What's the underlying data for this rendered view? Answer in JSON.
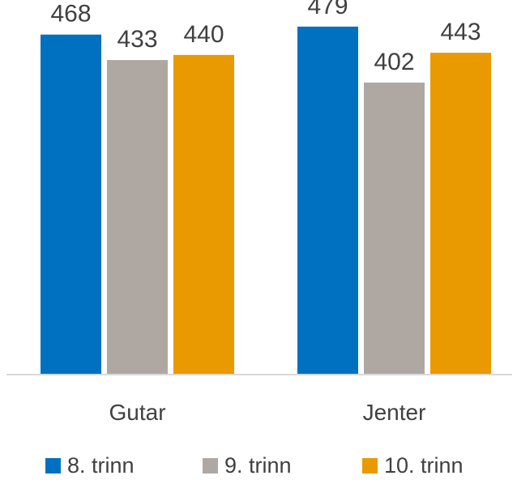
{
  "chart_data": {
    "type": "bar",
    "categories": [
      "Gutar",
      "Jenter"
    ],
    "series": [
      {
        "name": "8. trinn",
        "values": [
          468,
          479
        ],
        "color": "#0070C0"
      },
      {
        "name": "9. trinn",
        "values": [
          433,
          402
        ],
        "color": "#AFA8A2"
      },
      {
        "name": "10. trinn",
        "values": [
          440,
          443
        ],
        "color": "#E89A00"
      }
    ],
    "title": "",
    "xlabel": "",
    "ylabel": "",
    "ylim": [
      0,
      500
    ],
    "grid": false,
    "legend": "bottom",
    "data_labels": true
  }
}
